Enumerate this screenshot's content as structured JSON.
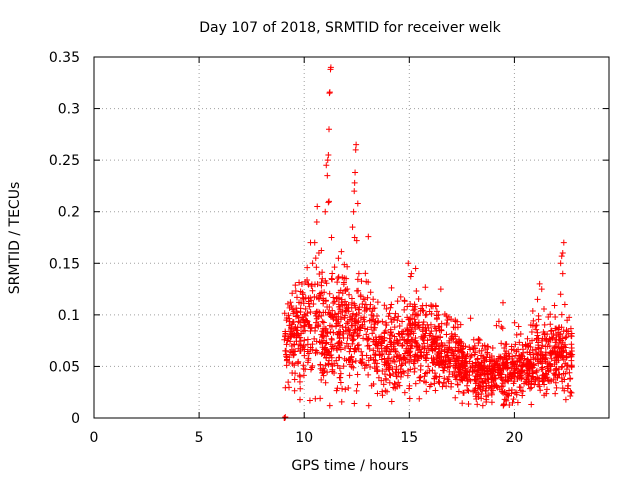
{
  "chart_data": {
    "type": "scatter",
    "title": "Day 107 of 2018, SRMTID for receiver welk",
    "xlabel": "GPS time / hours",
    "ylabel": "SRMTID / TECUs",
    "xlim": [
      0,
      24.5
    ],
    "ylim": [
      0,
      0.35
    ],
    "xticks": [
      0,
      5,
      10,
      15,
      20
    ],
    "xtick_labels": [
      "0",
      "5",
      "10",
      "15",
      "20"
    ],
    "yticks": [
      0,
      0.05,
      0.1,
      0.15,
      0.2,
      0.25,
      0.3,
      0.35
    ],
    "ytick_labels": [
      "0",
      "0.05",
      "0.1",
      "0.15",
      "0.2",
      "0.25",
      "0.3",
      "0.35"
    ],
    "grid": true,
    "marker": "plus",
    "marker_color": "#ff0000",
    "seed": 107,
    "time_start": 9.05,
    "time_end": 22.75,
    "point_count": 1900,
    "profile": [
      {
        "t": 9.0,
        "base": 0.065,
        "spread": 0.025
      },
      {
        "t": 10.0,
        "base": 0.085,
        "spread": 0.04
      },
      {
        "t": 11.0,
        "base": 0.085,
        "spread": 0.04
      },
      {
        "t": 12.0,
        "base": 0.085,
        "spread": 0.04
      },
      {
        "t": 13.0,
        "base": 0.08,
        "spread": 0.035
      },
      {
        "t": 14.0,
        "base": 0.065,
        "spread": 0.03
      },
      {
        "t": 15.0,
        "base": 0.068,
        "spread": 0.03
      },
      {
        "t": 16.0,
        "base": 0.07,
        "spread": 0.03
      },
      {
        "t": 17.0,
        "base": 0.058,
        "spread": 0.025
      },
      {
        "t": 18.0,
        "base": 0.045,
        "spread": 0.02
      },
      {
        "t": 19.0,
        "base": 0.042,
        "spread": 0.02
      },
      {
        "t": 20.0,
        "base": 0.045,
        "spread": 0.02
      },
      {
        "t": 21.0,
        "base": 0.055,
        "spread": 0.025
      },
      {
        "t": 22.0,
        "base": 0.058,
        "spread": 0.025
      },
      {
        "t": 23.0,
        "base": 0.055,
        "spread": 0.022
      }
    ],
    "spike_points": [
      {
        "x": 10.5,
        "y": 0.17
      },
      {
        "x": 10.55,
        "y": 0.155
      },
      {
        "x": 10.6,
        "y": 0.19
      },
      {
        "x": 10.62,
        "y": 0.205
      },
      {
        "x": 10.7,
        "y": 0.16
      },
      {
        "x": 10.3,
        "y": 0.17
      },
      {
        "x": 10.4,
        "y": 0.15
      },
      {
        "x": 11.0,
        "y": 0.2
      },
      {
        "x": 11.05,
        "y": 0.245
      },
      {
        "x": 11.1,
        "y": 0.235
      },
      {
        "x": 11.12,
        "y": 0.25
      },
      {
        "x": 11.15,
        "y": 0.255
      },
      {
        "x": 11.18,
        "y": 0.28
      },
      {
        "x": 11.2,
        "y": 0.315
      },
      {
        "x": 11.22,
        "y": 0.316
      },
      {
        "x": 11.25,
        "y": 0.338
      },
      {
        "x": 11.27,
        "y": 0.34
      },
      {
        "x": 11.15,
        "y": 0.209
      },
      {
        "x": 11.18,
        "y": 0.21
      },
      {
        "x": 11.3,
        "y": 0.175
      },
      {
        "x": 12.3,
        "y": 0.185
      },
      {
        "x": 12.35,
        "y": 0.2
      },
      {
        "x": 12.38,
        "y": 0.22
      },
      {
        "x": 12.4,
        "y": 0.228
      },
      {
        "x": 12.42,
        "y": 0.238
      },
      {
        "x": 12.45,
        "y": 0.26
      },
      {
        "x": 12.47,
        "y": 0.265
      },
      {
        "x": 12.4,
        "y": 0.175
      },
      {
        "x": 12.5,
        "y": 0.172
      },
      {
        "x": 12.55,
        "y": 0.208
      },
      {
        "x": 12.6,
        "y": 0.14
      },
      {
        "x": 14.95,
        "y": 0.15
      },
      {
        "x": 15.1,
        "y": 0.14
      },
      {
        "x": 15.3,
        "y": 0.145
      },
      {
        "x": 16.5,
        "y": 0.125
      },
      {
        "x": 21.2,
        "y": 0.13
      },
      {
        "x": 21.3,
        "y": 0.125
      },
      {
        "x": 21.1,
        "y": 0.115
      },
      {
        "x": 22.2,
        "y": 0.15
      },
      {
        "x": 22.25,
        "y": 0.157
      },
      {
        "x": 22.3,
        "y": 0.16
      },
      {
        "x": 22.35,
        "y": 0.17
      },
      {
        "x": 22.3,
        "y": 0.14
      },
      {
        "x": 22.2,
        "y": 0.12
      },
      {
        "x": 22.4,
        "y": 0.11
      },
      {
        "x": 9.05,
        "y": 0.0
      },
      {
        "x": 9.08,
        "y": 0.0
      },
      {
        "x": 9.1,
        "y": 0.001
      }
    ]
  }
}
